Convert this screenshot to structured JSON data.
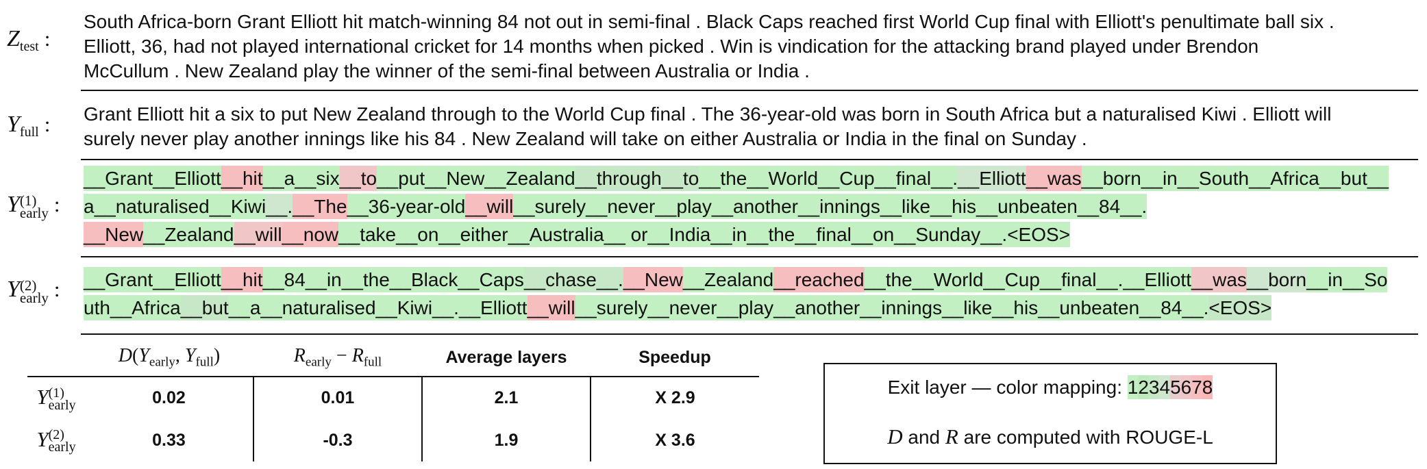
{
  "labels": {
    "ztest": {
      "sym": "Z",
      "sub": "test"
    },
    "yfull": {
      "sym": "Y",
      "sub": "full"
    },
    "y1": {
      "sym": "Y",
      "sup": "(1)",
      "sub": "early"
    },
    "y2": {
      "sym": "Y",
      "sup": "(2)",
      "sub": "early"
    },
    "colon": ":"
  },
  "ztest_lines": [
    "South Africa-born Grant Elliott hit match-winning 84 not out in semi-final . Black Caps reached first World Cup final with Elliott's penultimate ball six .",
    "Elliott, 36, had not played international cricket for 14 months when picked . Win is vindication for the attacking brand played under Brendon",
    "McCullum . New Zealand play the winner of the semi-final between Australia or India ."
  ],
  "yfull_lines": [
    "Grant Elliott hit a six to put New Zealand through to the World Cup final . The 36-year-old was born in South Africa but a naturalised Kiwi . Elliott will",
    "surely never play another innings like his 84 . New Zealand will take on either Australia or India in the final on Sunday ."
  ],
  "layer_colors": [
    "#c3f0c3",
    "#bde9bd",
    "#c6e8c6",
    "#cfe6cf",
    "#e9cdcd",
    "#f0c6c6",
    "#f6bebe",
    "#fbb6b6"
  ],
  "y1_lines": [
    [
      [
        "__Grant__Elliott",
        1
      ],
      [
        "__hit",
        7
      ],
      [
        "__a__six",
        1
      ],
      [
        "__to",
        6
      ],
      [
        "__put__New__Zealand",
        1
      ],
      [
        "__through__to",
        3
      ],
      [
        "__the__World__Cup__final__.",
        1
      ],
      [
        "__Elliott",
        4
      ],
      [
        "__was",
        7
      ],
      [
        "__born__in__South__Africa__but__",
        1
      ]
    ],
    [
      [
        "a__naturalised__Kiwi",
        1
      ],
      [
        "__.",
        4
      ],
      [
        "__The",
        7
      ],
      [
        "__36-year-old",
        1
      ],
      [
        "__will",
        7
      ],
      [
        "__surely__never__play__another__innings__like__his__unbeaten__84__.",
        1
      ]
    ],
    [
      [
        "__New",
        7
      ],
      [
        "__Zealand",
        1
      ],
      [
        "__will",
        6
      ],
      [
        "__now",
        7
      ],
      [
        "__take__on__either__Australia__ or__India__in__the__final__on__Sunday__.<EOS>",
        1
      ]
    ]
  ],
  "y2_lines": [
    [
      [
        "__Grant__Elliott",
        1
      ],
      [
        "__hit",
        7
      ],
      [
        "__84__in__the__Black__Caps",
        1
      ],
      [
        "__chase__.",
        3
      ],
      [
        "__New",
        7
      ],
      [
        "__Zealand",
        1
      ],
      [
        "__reached",
        7
      ],
      [
        "__the__World__Cup__final__.__Elliott",
        1
      ],
      [
        "__was",
        6
      ],
      [
        "__born",
        4
      ],
      [
        "__in__So",
        1
      ]
    ],
    [
      [
        "uth__Africa",
        1
      ],
      [
        "__but",
        3
      ],
      [
        "__a__naturalised__Kiwi__.__Elliott",
        1
      ],
      [
        "__will",
        7
      ],
      [
        "__surely__never__play__another__innings__like__his__unbeaten__84__.",
        1
      ],
      [
        "<EOS>",
        3
      ]
    ]
  ],
  "table": {
    "headers": {
      "d": {
        "sym": "D",
        "open": "(",
        "y1": "Y",
        "y1_sub": "early",
        "comma": ", ",
        "y2": "Y",
        "y2_sub": "full",
        "close": ")"
      },
      "r": {
        "a": "R",
        "a_sub": "early",
        "minus": " − ",
        "b": "R",
        "b_sub": "full"
      },
      "avg": "Average layers",
      "speedup": "Speedup"
    },
    "rows": [
      {
        "label": {
          "sym": "Y",
          "sup": "(1)",
          "sub": "early"
        },
        "d": "0.02",
        "r": "0.01",
        "avg": "2.1",
        "speedup": "X 2.9"
      },
      {
        "label": {
          "sym": "Y",
          "sup": "(2)",
          "sub": "early"
        },
        "d": "0.33",
        "r": "-0.3",
        "avg": "1.9",
        "speedup": "X 3.6"
      }
    ]
  },
  "legend": {
    "line1": "Exit layer — color mapping: ",
    "digits": [
      "1",
      "2",
      "3",
      "4",
      "5",
      "6",
      "7",
      "8"
    ],
    "line2_d": "D",
    "line2_and": " and ",
    "line2_r": "R",
    "line2_rest": " are computed with ROUGE-L"
  }
}
